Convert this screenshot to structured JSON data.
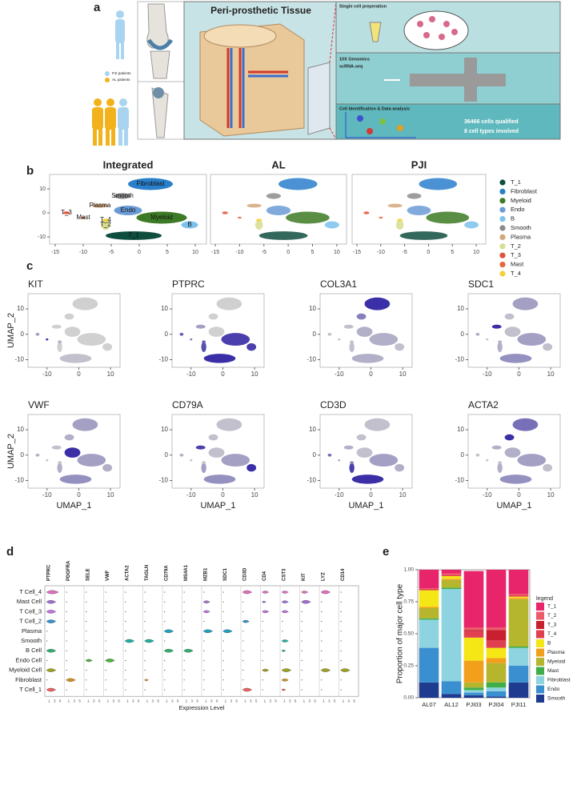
{
  "panel_labels": [
    "a",
    "b",
    "c",
    "d",
    "e"
  ],
  "panel_a": {
    "title": "Peri-prosthetic Tissue",
    "groups": [
      "PJI patients",
      "AL patients"
    ],
    "steps": [
      {
        "title": "Single cell preperation"
      },
      {
        "title": "10X Genomics",
        "subtitle": "scRNA-seq"
      },
      {
        "title": "Cell Identification & Data analysis",
        "notes": [
          "36466 cells qualified",
          "8 cell types involved"
        ]
      }
    ]
  },
  "panel_b": {
    "titles": [
      "Integrated",
      "AL",
      "PJI"
    ],
    "xlim": [
      -16,
      12
    ],
    "ylim": [
      -13,
      16
    ],
    "xticks": [
      -15,
      -10,
      -5,
      0,
      5,
      10
    ],
    "yticks": [
      -10,
      0,
      10
    ],
    "clusters": [
      {
        "name": "T_1",
        "color": "#0f4d3f",
        "x": -1,
        "y": -9.5
      },
      {
        "name": "Fibroblast",
        "color": "#2a7fcb",
        "x": 2,
        "y": 12
      },
      {
        "name": "Myeloid",
        "color": "#3d7a25",
        "x": 4,
        "y": -2
      },
      {
        "name": "Endo",
        "color": "#6b9bd6",
        "x": -2,
        "y": 1
      },
      {
        "name": "B",
        "color": "#7cc2ec",
        "x": 9,
        "y": -5
      },
      {
        "name": "Smooth",
        "color": "#8c8c8c",
        "x": -3,
        "y": 7
      },
      {
        "name": "Plasma",
        "color": "#d4a77a",
        "x": -7,
        "y": 3
      },
      {
        "name": "T_2",
        "color": "#d8dd90",
        "x": -6,
        "y": -5
      },
      {
        "name": "T_3",
        "color": "#e2533b",
        "x": -13,
        "y": 0
      },
      {
        "name": "Mast",
        "color": "#e8673a",
        "x": -10,
        "y": -2
      },
      {
        "name": "T_4",
        "color": "#f2d23a",
        "x": -6,
        "y": -3
      }
    ]
  },
  "panel_c": {
    "genes": [
      "KIT",
      "PTPRC",
      "COL3A1",
      "SDC1",
      "VWF",
      "CD79A",
      "CD3D",
      "ACTA2"
    ],
    "xlabel": "UMAP_1",
    "ylabel": "UMAP_2",
    "xlim": [
      -16,
      13
    ],
    "ylim": [
      -13,
      16
    ],
    "xticks": [
      -10,
      0,
      10
    ],
    "yticks": [
      -10,
      0,
      10
    ],
    "expression": [
      [
        0.1,
        0,
        0,
        0,
        0,
        0,
        0,
        0,
        0.3,
        1,
        0.2
      ],
      [
        1,
        0,
        0.9,
        0,
        0.9,
        0,
        0.3,
        0.8,
        0.7,
        0.5,
        0.7
      ],
      [
        0.2,
        1,
        0.2,
        0.2,
        0.1,
        0.5,
        0.1,
        0.1,
        0.1,
        0.1,
        0.1
      ],
      [
        0.4,
        0.3,
        0.3,
        0.1,
        0.1,
        0.1,
        1,
        0.2,
        0.2,
        0.1,
        0.2
      ],
      [
        0.4,
        0.3,
        0.3,
        1,
        0.2,
        0.2,
        0.1,
        0.2,
        0.2,
        0.1,
        0.1
      ],
      [
        0.4,
        0.1,
        0.3,
        0.1,
        1,
        0.1,
        0.9,
        0.3,
        0.2,
        0.1,
        0.1
      ],
      [
        1,
        0.1,
        0.3,
        0.1,
        0.2,
        0.1,
        0.2,
        0.9,
        0.6,
        0.2,
        0.5
      ],
      [
        0.4,
        0.6,
        0.3,
        0.2,
        0.1,
        1,
        0.2,
        0.2,
        0.1,
        0.1,
        0.1
      ]
    ]
  },
  "panel_d": {
    "genes": [
      "PTPRC",
      "PDGFRA",
      "SELE",
      "VWF",
      "ACTA2",
      "TAGLN",
      "CD79A",
      "MS4A1",
      "MZB1",
      "SDC1",
      "CD3D",
      "CD4",
      "CST3",
      "KIT",
      "LYZ",
      "CD14"
    ],
    "cell_types": [
      "T Cell_4",
      "Mast Cell",
      "T Cell_3",
      "T Cell_2",
      "Plasma",
      "Smooth",
      "B Cell",
      "Endo Cell",
      "Myeloid Cell",
      "Fibroblast",
      "T Cell_1"
    ],
    "colors": [
      "#e070c0",
      "#a070d0",
      "#c070e0",
      "#3090d0",
      "#20a0c0",
      "#20b0a0",
      "#30b070",
      "#50b040",
      "#a0a020",
      "#d09020",
      "#f06060"
    ],
    "xlabel": "Expression Level",
    "xticks": [
      1,
      3,
      5
    ],
    "peaks": [
      [
        4,
        0,
        0,
        0,
        0,
        0,
        0,
        0,
        0,
        0,
        3,
        2,
        2,
        2,
        3,
        0
      ],
      [
        3,
        0,
        0,
        0,
        0,
        0,
        0,
        0,
        2,
        0,
        0,
        1,
        2,
        3,
        0,
        0
      ],
      [
        3,
        0,
        0,
        0,
        0,
        0,
        0,
        0,
        2,
        0,
        0,
        2,
        2,
        0,
        0,
        0
      ],
      [
        3,
        0,
        0,
        0,
        0,
        0,
        0,
        0,
        0,
        0,
        2,
        0,
        0,
        0,
        0,
        0
      ],
      [
        0,
        0,
        0,
        0,
        0,
        0,
        3,
        0,
        3,
        3,
        0,
        0,
        0,
        0,
        0,
        0
      ],
      [
        0,
        0,
        0,
        0,
        3,
        3,
        0,
        0,
        0,
        0,
        0,
        0,
        2,
        0,
        0,
        0
      ],
      [
        3,
        0,
        0,
        0,
        0,
        0,
        3,
        3,
        0,
        0,
        0,
        0,
        1,
        0,
        0,
        0
      ],
      [
        0,
        0,
        2,
        3,
        0,
        0,
        0,
        0,
        0,
        0,
        0,
        0,
        0,
        0,
        0,
        0
      ],
      [
        3,
        0,
        0,
        0,
        0,
        0,
        0,
        0,
        0,
        0,
        0,
        2,
        3,
        0,
        3,
        3
      ],
      [
        0,
        3,
        0,
        0,
        0,
        1,
        0,
        0,
        0,
        0,
        0,
        0,
        2,
        0,
        0,
        0
      ],
      [
        3,
        0,
        0,
        0,
        0,
        0,
        0,
        0,
        0,
        0,
        3,
        0,
        1,
        0,
        0,
        0
      ]
    ]
  },
  "chart_data": {
    "type": "bar",
    "stacked": true,
    "ylabel": "Proportion of major cell type",
    "legend_title": "legend",
    "categories": [
      "AL07",
      "AL12",
      "PJI03",
      "PJI04",
      "PJI11"
    ],
    "ylim": [
      0,
      1
    ],
    "yticks": [
      {
        "value": 0,
        "label": "0.00"
      },
      {
        "value": 0.25,
        "label": "0.25"
      },
      {
        "value": 0.5,
        "label": "0.50"
      },
      {
        "value": 0.75,
        "label": "0.75"
      },
      {
        "value": 1,
        "label": "1.00"
      }
    ],
    "series": [
      {
        "name": "T_1",
        "color": "#e8246a",
        "values": [
          0.145,
          0.03,
          0.44,
          0.45,
          0.19
        ]
      },
      {
        "name": "T_2",
        "color": "#ec5b6a",
        "values": [
          0.005,
          0.01,
          0.02,
          0.02,
          0.01
        ]
      },
      {
        "name": "T_3",
        "color": "#c8202f",
        "values": [
          0,
          0,
          0.01,
          0.08,
          0
        ]
      },
      {
        "name": "T_4",
        "color": "#e04050",
        "values": [
          0.01,
          0.01,
          0.05,
          0.06,
          0.01
        ]
      },
      {
        "name": "B",
        "color": "#f5e616",
        "values": [
          0.13,
          0.02,
          0.18,
          0.08,
          0.01
        ]
      },
      {
        "name": "Plasma",
        "color": "#f2a01c",
        "values": [
          0.01,
          0.01,
          0.17,
          0.04,
          0.01
        ]
      },
      {
        "name": "Myeloid",
        "color": "#b5b52e",
        "values": [
          0.08,
          0.06,
          0.04,
          0.15,
          0.37
        ]
      },
      {
        "name": "Mast",
        "color": "#3fae4a",
        "values": [
          0.01,
          0.01,
          0.02,
          0.04,
          0.01
        ]
      },
      {
        "name": "Fibroblast",
        "color": "#8dd3e0",
        "values": [
          0.22,
          0.72,
          0.02,
          0.03,
          0.14
        ]
      },
      {
        "name": "Endo",
        "color": "#3a8fd0",
        "values": [
          0.27,
          0.1,
          0.02,
          0.04,
          0.13
        ]
      },
      {
        "name": "Smooth",
        "color": "#1f3b8f",
        "values": [
          0.12,
          0.03,
          0.02,
          0.01,
          0.12
        ]
      }
    ]
  }
}
